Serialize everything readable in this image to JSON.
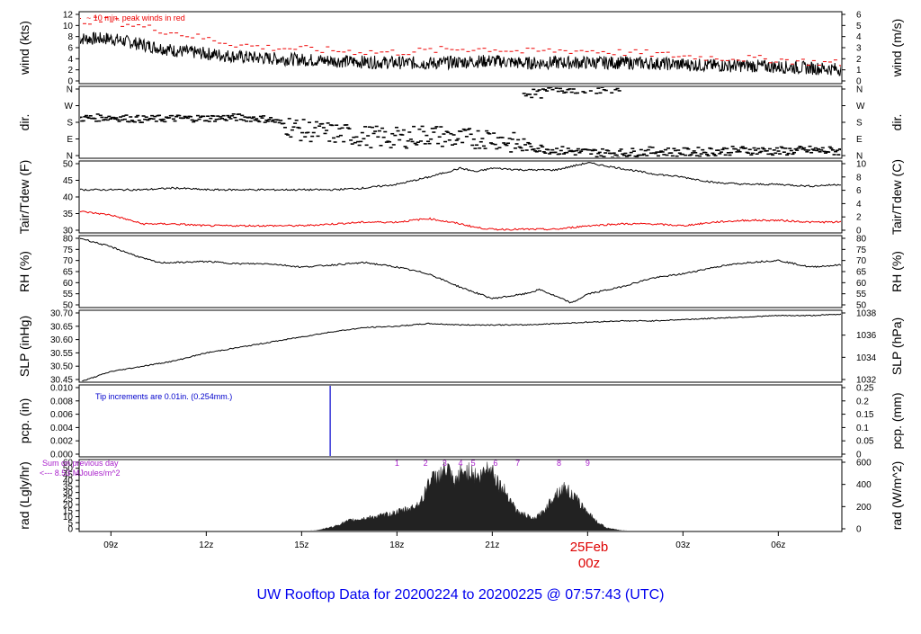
{
  "page": {
    "footer_title": "UW Rooftop Data for 20200224  to  20200225 @ 07:57:43  (UTC)",
    "date_label": "25Feb",
    "date_sublabel": "00z",
    "colors": {
      "title": "#0000ee",
      "date": "#dd0000",
      "red": "#ee0000",
      "blue": "#0000cc",
      "purple": "#aa22cc"
    }
  },
  "x_axis": {
    "ticks": [
      "09z",
      "12z",
      "15z",
      "18z",
      "21z",
      "00z",
      "03z",
      "06z"
    ],
    "tick_hours": [
      9,
      12,
      15,
      18,
      21,
      24,
      27,
      30
    ],
    "range_hours": [
      8.0,
      32.0
    ]
  },
  "chart_data": [
    {
      "type": "line",
      "id": "wind",
      "ylabel_left": "wind (kts)",
      "ylabel_right": "wind (m/s)",
      "left_ticks": [
        "0",
        "2",
        "4",
        "6",
        "8",
        "10",
        "12"
      ],
      "right_ticks": [
        "0",
        "1",
        "2",
        "3",
        "4",
        "5",
        "6"
      ],
      "ylim": [
        0,
        12
      ],
      "annotation": "~ 10 min. peak winds in red",
      "series": [
        {
          "color": "#000000",
          "x": [
            8,
            9,
            10,
            11,
            12,
            13,
            14,
            15,
            16,
            17,
            18,
            19,
            20,
            21,
            22,
            23,
            24,
            25,
            26,
            27,
            28,
            29,
            30,
            31,
            32
          ],
          "y": [
            7.5,
            7.5,
            6.5,
            5.5,
            5,
            4.5,
            4.2,
            4,
            3.8,
            3.6,
            3.5,
            3.4,
            3.6,
            3.8,
            3.4,
            3.5,
            3.5,
            3.5,
            3.4,
            3.2,
            3.0,
            3.0,
            2.8,
            2.6,
            2.4
          ]
        },
        {
          "color": "#ee0000",
          "x": [
            8,
            9,
            10,
            11,
            12,
            13,
            14,
            15,
            16,
            17,
            18,
            19,
            20,
            21,
            22,
            23,
            24,
            25,
            26,
            27,
            28,
            29,
            30,
            31,
            32
          ],
          "y": [
            10.5,
            10.5,
            9.5,
            8.5,
            7.5,
            6.5,
            6,
            5.8,
            5.5,
            5.3,
            5.2,
            5.5,
            5.8,
            5.8,
            5.3,
            5.5,
            5.5,
            5.2,
            5,
            4.6,
            4.3,
            4.2,
            4.0,
            3.6,
            3.4
          ]
        }
      ]
    },
    {
      "type": "scatter",
      "id": "dir",
      "ylabel_left": "dir.",
      "ylabel_right": "dir.",
      "left_ticks": [
        "N",
        "E",
        "S",
        "W",
        "N"
      ],
      "right_ticks": [
        "N",
        "E",
        "S",
        "W",
        "N"
      ],
      "ylim": [
        0,
        360
      ],
      "series": [
        {
          "color": "#000000",
          "x": [
            8,
            9,
            10,
            11,
            12,
            13,
            14,
            15,
            16,
            17,
            18,
            19,
            20,
            21,
            22,
            23,
            24,
            25,
            26,
            27,
            28,
            29,
            30,
            31,
            32
          ],
          "y": [
            200,
            205,
            195,
            200,
            200,
            205,
            195,
            140,
            125,
            110,
            100,
            120,
            95,
            105,
            60,
            40,
            30,
            25,
            35,
            30,
            35,
            40,
            35,
            40,
            35
          ]
        },
        {
          "color": "#000000",
          "x": [
            22.0,
            22.5,
            23.0,
            23.5,
            24.0,
            24.5,
            25.0
          ],
          "y": [
            330,
            320,
            350,
            345,
            350,
            340,
            355
          ]
        }
      ]
    },
    {
      "type": "line",
      "id": "temp",
      "ylabel_left": "Tair/Tdew (F)",
      "ylabel_right": "Tair/Tdew (C)",
      "left_ticks": [
        "30",
        "35",
        "40",
        "45",
        "50"
      ],
      "right_ticks": [
        "0",
        "2",
        "4",
        "6",
        "8",
        "10"
      ],
      "ylim": [
        30,
        50
      ],
      "series": [
        {
          "color": "#000000",
          "x": [
            8,
            9,
            10,
            11,
            12,
            13,
            14,
            15,
            16,
            17,
            18,
            19,
            20,
            20.5,
            21,
            22,
            23,
            24,
            25,
            26,
            27,
            28,
            29,
            30,
            31,
            32
          ],
          "y": [
            42,
            42,
            42,
            42.5,
            42,
            42,
            42,
            42,
            42,
            42.5,
            43.5,
            45.5,
            48,
            47,
            48,
            47.5,
            47.5,
            49.5,
            48,
            46.5,
            45.5,
            44,
            43.5,
            43.5,
            43,
            43.5
          ]
        },
        {
          "color": "#ee0000",
          "x": [
            8,
            9,
            10,
            11,
            12,
            13,
            14,
            15,
            16,
            17,
            18,
            19,
            20,
            20.5,
            21,
            22,
            23,
            24,
            25,
            26,
            27,
            28,
            29,
            30,
            31,
            32
          ],
          "y": [
            36,
            35,
            32.5,
            32.5,
            32,
            32,
            32,
            32,
            32.5,
            33,
            33,
            34,
            32.5,
            31.5,
            31,
            31,
            31,
            32,
            32.5,
            32.5,
            32,
            33,
            33.5,
            33.5,
            33,
            33
          ]
        }
      ]
    },
    {
      "type": "line",
      "id": "rh",
      "ylabel_left": "RH (%)",
      "ylabel_right": "RH (%)",
      "left_ticks": [
        "50",
        "55",
        "60",
        "65",
        "70",
        "75",
        "80"
      ],
      "right_ticks": [
        "50",
        "55",
        "60",
        "65",
        "70",
        "75",
        "80"
      ],
      "ylim": [
        48,
        80
      ],
      "series": [
        {
          "color": "#000000",
          "x": [
            8,
            9,
            10,
            10.5,
            11,
            12,
            13,
            14,
            15,
            16,
            17,
            18,
            19,
            20,
            21,
            22,
            22.5,
            23,
            23.5,
            24,
            25,
            26,
            27,
            28,
            29,
            30,
            31,
            32
          ],
          "y": [
            79,
            75,
            70,
            68,
            68,
            68.5,
            67.5,
            67.5,
            66,
            67,
            68,
            66,
            63,
            57,
            52,
            54,
            56,
            53,
            50,
            54,
            57,
            61,
            63,
            66,
            68,
            69,
            66,
            67
          ]
        }
      ]
    },
    {
      "type": "line",
      "id": "slp",
      "ylabel_left": "SLP (inHg)",
      "ylabel_right": "SLP (hPa)",
      "left_ticks": [
        "30.45",
        "30.50",
        "30.55",
        "30.60",
        "30.65",
        "30.70"
      ],
      "right_ticks": [
        "1032",
        "1034",
        "1036",
        "1038"
      ],
      "ylim": [
        30.44,
        30.71
      ],
      "series": [
        {
          "color": "#000000",
          "x": [
            8,
            9,
            10,
            11,
            12,
            13,
            14,
            15,
            16,
            17,
            18,
            19,
            20,
            21,
            22,
            23,
            24,
            25,
            26,
            27,
            28,
            29,
            30,
            31,
            32
          ],
          "y": [
            30.44,
            30.48,
            30.5,
            30.52,
            30.55,
            30.57,
            30.59,
            30.61,
            30.63,
            30.645,
            30.65,
            30.66,
            30.655,
            30.655,
            30.655,
            30.66,
            30.665,
            30.67,
            30.67,
            30.675,
            30.68,
            30.685,
            30.69,
            30.69,
            30.695
          ]
        }
      ]
    },
    {
      "type": "line",
      "id": "pcp",
      "ylabel_left": "pcp. (in)",
      "ylabel_right": "pcp. (mm)",
      "left_ticks": [
        "0.000",
        "0.002",
        "0.004",
        "0.006",
        "0.008",
        "0.010"
      ],
      "right_ticks": [
        "0",
        "0.05",
        "0.1",
        "0.15",
        "0.2",
        "0.25"
      ],
      "ylim": [
        0,
        0.01
      ],
      "annotation": "Tip increments are 0.01in. (0.254mm.)",
      "series": [
        {
          "color": "#0000cc",
          "x": [
            8,
            15.9,
            15.9,
            32
          ],
          "y": [
            0,
            0,
            0.01,
            0.01
          ]
        }
      ]
    },
    {
      "type": "area",
      "id": "rad",
      "ylabel_left": "rad (Lgly/hr)",
      "ylabel_right": "rad (W/m^2)",
      "left_ticks": [
        "0",
        "5",
        "10",
        "15",
        "20",
        "25",
        "30",
        "35",
        "40",
        "45",
        "50",
        "60"
      ],
      "right_ticks": [
        "0",
        "200",
        "400",
        "600"
      ],
      "ylim": [
        0,
        60
      ],
      "annotation_lines": [
        "Sum on previous day",
        "<--- 8.53 MJoules/m^2"
      ],
      "markers": [
        "1",
        "2",
        "3",
        "4",
        "5",
        "6",
        "7",
        "8",
        "9"
      ],
      "marker_hours": [
        18.0,
        18.9,
        19.5,
        20.0,
        20.4,
        21.1,
        21.8,
        23.1,
        24.0
      ],
      "series": [
        {
          "color": "#222222",
          "x": [
            15.0,
            15.5,
            16.0,
            16.5,
            17.0,
            17.5,
            18.0,
            18.5,
            18.8,
            19.0,
            19.3,
            19.6,
            19.8,
            20.0,
            20.3,
            20.6,
            20.9,
            21.2,
            21.5,
            21.8,
            22.0,
            22.3,
            22.6,
            23.0,
            23.3,
            23.6,
            24.0,
            24.3,
            24.6,
            25.0,
            25.5
          ],
          "y": [
            0,
            1,
            4,
            9,
            11,
            13,
            16,
            20,
            26,
            42,
            46,
            52,
            38,
            48,
            50,
            44,
            56,
            40,
            30,
            16,
            14,
            10,
            16,
            32,
            36,
            28,
            16,
            8,
            3,
            1,
            0
          ]
        }
      ]
    }
  ]
}
